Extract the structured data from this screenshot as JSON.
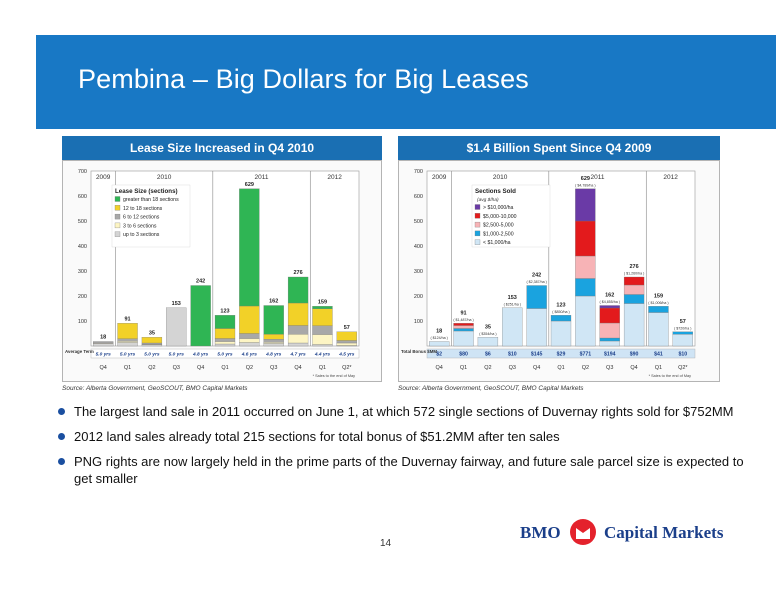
{
  "slide": {
    "title": "Pembina – Big Dollars for Big Leases",
    "page_number": "14",
    "logo": {
      "bmo": "BMO",
      "text": "Capital Markets"
    }
  },
  "colors": {
    "header": "#1878c5",
    "panel_head": "#1a6fb3",
    "bullet": "#1a4fa0",
    "logo_red": "#e4222c",
    "logo_blue": "#1b3f8a"
  },
  "left_panel": {
    "heading": "Lease Size Increased in Q4 2010",
    "source": "Source: Alberta Government, GeoSCOUT, BMO Capital Markets"
  },
  "right_panel": {
    "heading": "$1.4 Billion Spent Since Q4 2009",
    "source": "Source: Alberta Government, GeoSCOUT, BMO Capital Markets"
  },
  "bullets": [
    "The largest land sale in 2011 occurred on June 1, at which 572 single sections of Duvernay rights sold for $752MM",
    "2012 land sales already total 215 sections for total bonus of $51.2MM after ten sales",
    "PNG rights are now largely held in the prime parts of the Duvernay fairway, and future sale parcel size is expected to get smaller"
  ],
  "chart_data": [
    {
      "type": "bar",
      "stacked": true,
      "categories": [
        "Q4",
        "Q1",
        "Q2",
        "Q3",
        "Q4",
        "Q1",
        "Q2",
        "Q3",
        "Q4",
        "Q1",
        "Q2*"
      ],
      "years": [
        {
          "label": "2009",
          "from": 0,
          "to": 0
        },
        {
          "label": "2010",
          "from": 1,
          "to": 4
        },
        {
          "label": "2011",
          "from": 5,
          "to": 8
        },
        {
          "label": "2012",
          "from": 9,
          "to": 10
        }
      ],
      "ylim": [
        0,
        700
      ],
      "yticks": [
        100,
        200,
        300,
        400,
        500,
        600,
        700
      ],
      "totals": [
        18,
        91,
        35,
        153,
        242,
        123,
        629,
        162,
        276,
        159,
        57
      ],
      "legend_title": "Lease Size (sections)",
      "series": [
        {
          "name": "up to 3 sections",
          "color": "#d4d4d4",
          "values": [
            10,
            14,
            5,
            153,
            0,
            8,
            14,
            10,
            12,
            6,
            2
          ]
        },
        {
          "name": "3 to 6 sections",
          "color": "#fdf5c4",
          "values": [
            2,
            5,
            2,
            0,
            0,
            10,
            16,
            5,
            35,
            40,
            10
          ]
        },
        {
          "name": "6 to 12 sections",
          "color": "#a8a8a8",
          "values": [
            6,
            10,
            5,
            0,
            0,
            12,
            20,
            12,
            35,
            35,
            10
          ]
        },
        {
          "name": "12 to 18 sections",
          "color": "#f2d128",
          "values": [
            0,
            62,
            23,
            0,
            0,
            40,
            110,
            20,
            90,
            68,
            35
          ]
        },
        {
          "name": "greater than 18 sections",
          "color": "#2fb554",
          "values": [
            0,
            0,
            0,
            0,
            242,
            53,
            469,
            115,
            104,
            10,
            0
          ]
        }
      ],
      "term_label": "Average Term",
      "terms": [
        "5.0 yrs",
        "5.0 yrs",
        "5.0 yrs",
        "5.0 yrs",
        "4.8 yrs",
        "5.0 yrs",
        "4.6 yrs",
        "4.8 yrs",
        "4.7 yrs",
        "4.4 yrs",
        "4.5 yrs"
      ],
      "footnote": "* Sales to the end of May"
    },
    {
      "type": "bar",
      "stacked": true,
      "categories": [
        "Q4",
        "Q1",
        "Q2",
        "Q3",
        "Q4",
        "Q1",
        "Q2",
        "Q3",
        "Q4",
        "Q1",
        "Q2*"
      ],
      "years": [
        {
          "label": "2009",
          "from": 0,
          "to": 0
        },
        {
          "label": "2010",
          "from": 1,
          "to": 4
        },
        {
          "label": "2011",
          "from": 5,
          "to": 8
        },
        {
          "label": "2012",
          "from": 9,
          "to": 10
        }
      ],
      "ylim": [
        0,
        700
      ],
      "yticks": [
        100,
        200,
        300,
        400,
        500,
        600,
        700
      ],
      "totals": [
        18,
        91,
        35,
        153,
        242,
        123,
        629,
        162,
        276,
        159,
        57
      ],
      "avg_prices": [
        "$124/ha",
        "$1,487/ha",
        "$354/ha",
        "$251/ha",
        "$2,387/ha",
        "$850/ha",
        "$4,789/ha",
        "$4,855/ha",
        "$1,260/ha",
        "$1,006/ha",
        "$720/ha"
      ],
      "legend_title": "Sections Sold",
      "legend_subtitle": "(avg $/ha)",
      "series": [
        {
          "name": "< $1,000/ha",
          "color": "#d0e6f5",
          "values": [
            18,
            60,
            35,
            153,
            150,
            100,
            200,
            20,
            170,
            134,
            47
          ]
        },
        {
          "name": "$1,000-2,500",
          "color": "#1aa3df",
          "values": [
            0,
            10,
            0,
            0,
            92,
            23,
            70,
            12,
            36,
            25,
            10
          ]
        },
        {
          "name": "$2,500-5,000",
          "color": "#f7b3b6",
          "values": [
            0,
            12,
            0,
            0,
            0,
            0,
            90,
            60,
            38,
            0,
            0
          ]
        },
        {
          "name": "$5,000-10,000",
          "color": "#e31a1c",
          "values": [
            0,
            9,
            0,
            0,
            0,
            0,
            140,
            60,
            32,
            0,
            0
          ]
        },
        {
          "name": "> $10,000/ha",
          "color": "#6a3aa6",
          "values": [
            0,
            0,
            0,
            0,
            0,
            0,
            129,
            10,
            0,
            0,
            0
          ]
        }
      ],
      "bonus_label": "Total Bonus $MM",
      "bonus": [
        "$2",
        "$80",
        "$6",
        "$10",
        "$145",
        "$29",
        "$771",
        "$194",
        "$90",
        "$41",
        "$10"
      ],
      "footnote": "* Sales to the end of May"
    }
  ]
}
